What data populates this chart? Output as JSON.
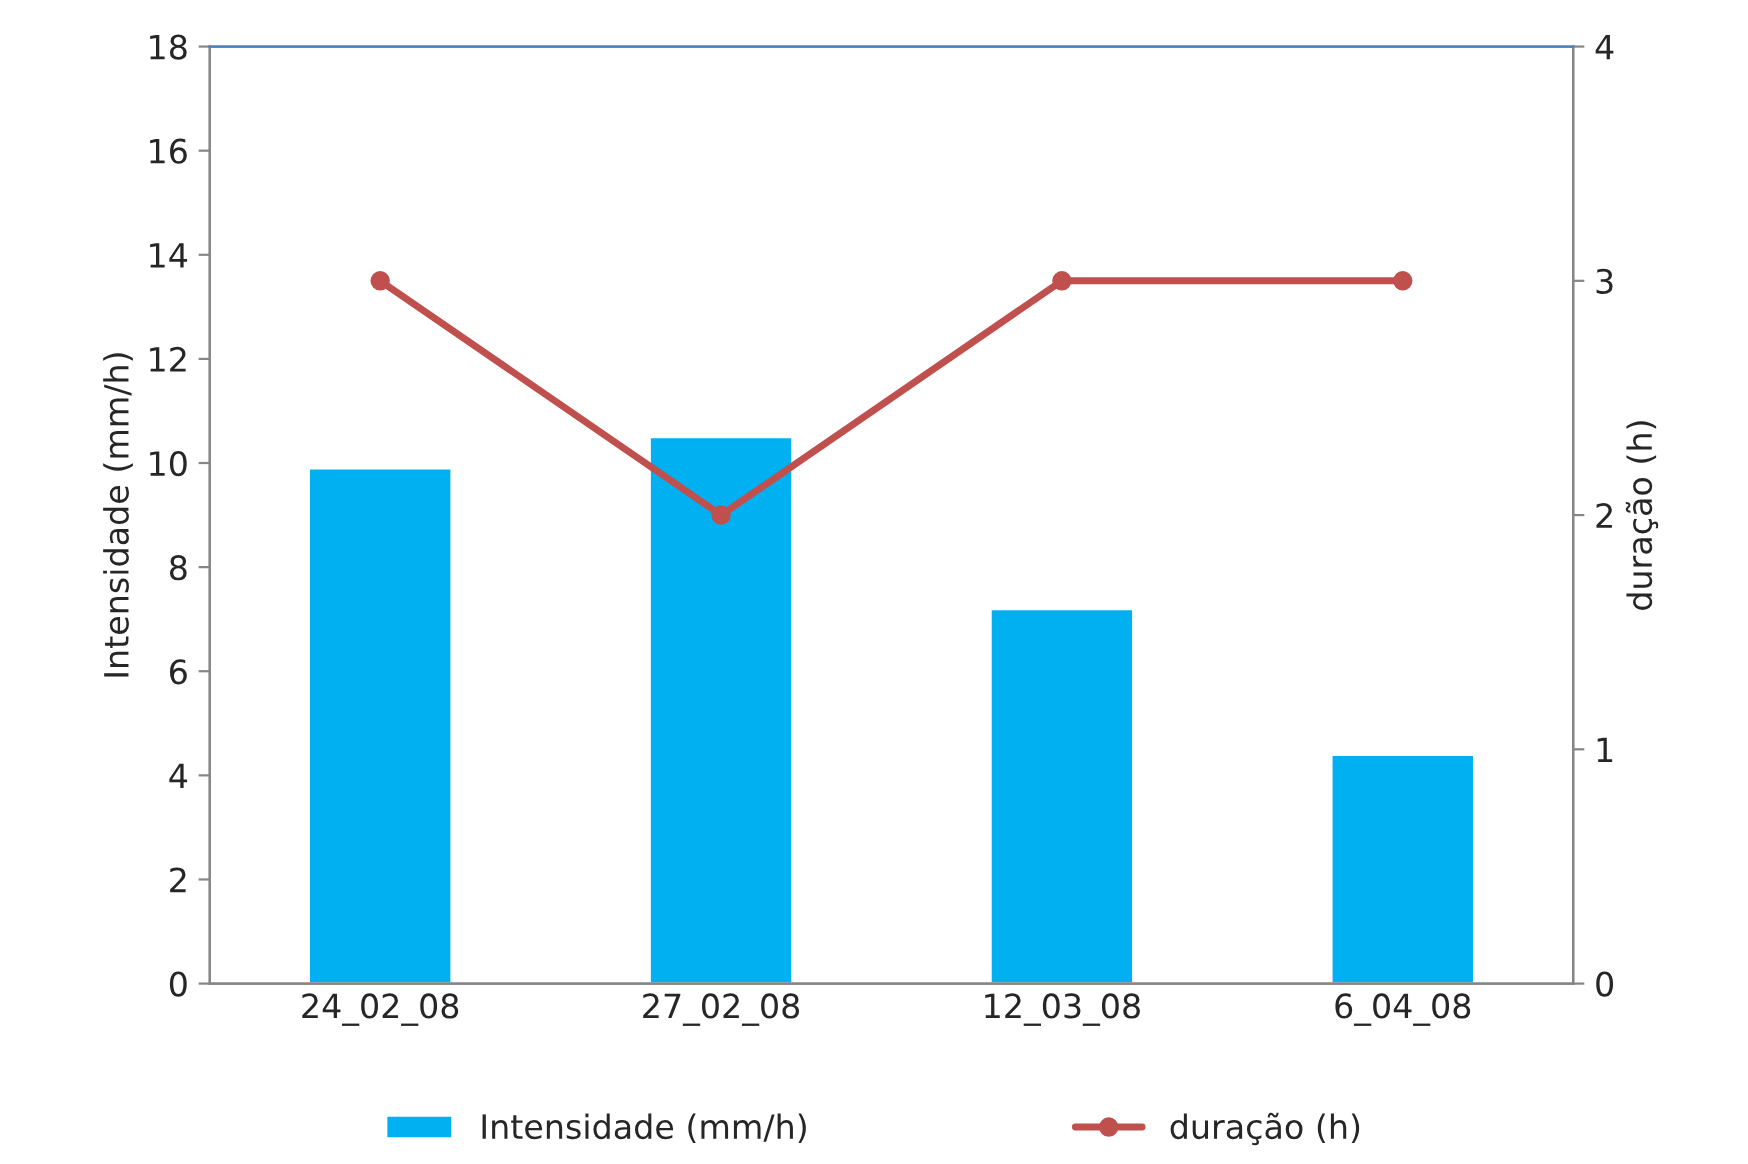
{
  "chart_data": {
    "type": "bar",
    "categories": [
      "24_02_08",
      "27_02_08",
      "12_03_08",
      "6_04_08"
    ],
    "series": [
      {
        "name": "Intensidade (mm/h)",
        "color": "#00b0f0",
        "values": [
          9.9,
          10.5,
          7.2,
          4.4
        ]
      },
      {
        "name": "duração (h)",
        "type": "line",
        "axis": "y2",
        "color": "#c0504d",
        "marker": "circle",
        "values": [
          3,
          2,
          3,
          3
        ]
      }
    ],
    "ylabel": "Intensidade (mm/h)",
    "y2label": "duração (h)",
    "ylim": [
      0,
      18
    ],
    "yticks": [
      0,
      2,
      4,
      6,
      8,
      10,
      12,
      14,
      16,
      18
    ],
    "y2lim": [
      0,
      4
    ],
    "y2ticks": [
      0,
      1,
      2,
      3,
      4
    ],
    "grid": false,
    "legend": "bottom"
  }
}
